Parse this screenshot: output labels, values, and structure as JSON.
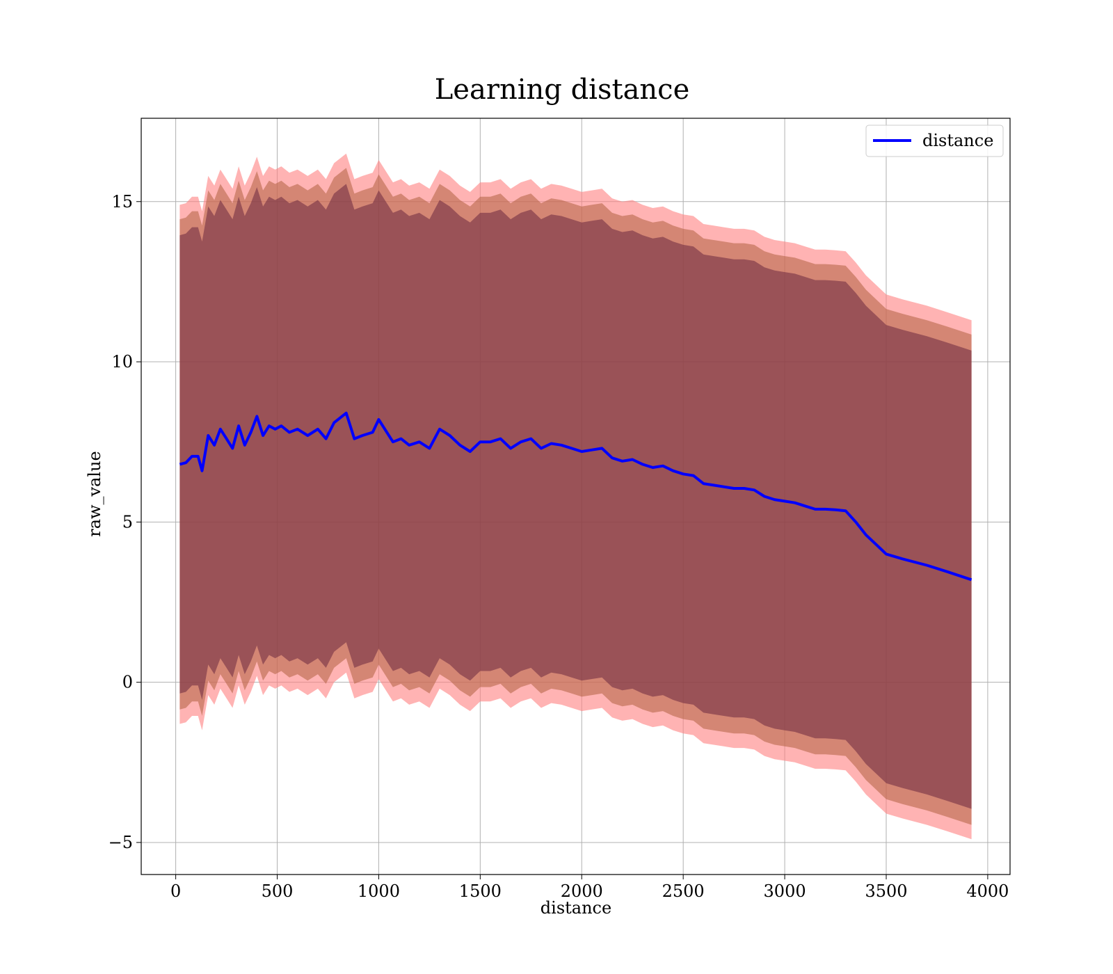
{
  "chart_data": {
    "type": "line",
    "title": "Learning distance",
    "xlabel": "distance",
    "ylabel": "raw_value",
    "xlim": [
      -170,
      4110
    ],
    "ylim": [
      -6.0,
      17.6
    ],
    "xticks": [
      0,
      500,
      1000,
      1500,
      2000,
      2500,
      3000,
      3500,
      4000
    ],
    "yticks": [
      -5,
      0,
      5,
      10,
      15
    ],
    "xtick_labels": [
      "0",
      "500",
      "1000",
      "1500",
      "2000",
      "2500",
      "3000",
      "3500",
      "4000"
    ],
    "ytick_labels": [
      "−5",
      "0",
      "5",
      "10",
      "15"
    ],
    "grid": true,
    "legend_position": "upper right",
    "series": [
      {
        "name": "distance",
        "color": "#0000ff",
        "x": [
          20,
          50,
          80,
          110,
          130,
          160,
          190,
          220,
          250,
          280,
          310,
          340,
          370,
          400,
          430,
          460,
          490,
          520,
          560,
          600,
          650,
          700,
          740,
          780,
          840,
          880,
          920,
          970,
          1000,
          1030,
          1070,
          1110,
          1150,
          1200,
          1250,
          1300,
          1350,
          1400,
          1450,
          1500,
          1550,
          1600,
          1650,
          1700,
          1750,
          1800,
          1850,
          1900,
          1950,
          2000,
          2050,
          2100,
          2150,
          2200,
          2250,
          2300,
          2350,
          2400,
          2450,
          2500,
          2550,
          2600,
          2650,
          2700,
          2750,
          2800,
          2850,
          2900,
          2950,
          3000,
          3050,
          3100,
          3150,
          3200,
          3250,
          3300,
          3350,
          3400,
          3450,
          3500,
          3580,
          3700,
          3800,
          3920
        ],
        "y": [
          6.8,
          6.85,
          7.05,
          7.05,
          6.6,
          7.7,
          7.4,
          7.9,
          7.6,
          7.3,
          8.0,
          7.4,
          7.8,
          8.3,
          7.7,
          8.0,
          7.9,
          8.0,
          7.8,
          7.9,
          7.7,
          7.9,
          7.6,
          8.1,
          8.4,
          7.6,
          7.7,
          7.8,
          8.2,
          7.9,
          7.5,
          7.6,
          7.4,
          7.5,
          7.3,
          7.9,
          7.7,
          7.4,
          7.2,
          7.5,
          7.5,
          7.6,
          7.3,
          7.5,
          7.6,
          7.3,
          7.45,
          7.4,
          7.3,
          7.2,
          7.25,
          7.3,
          7.0,
          6.9,
          6.95,
          6.8,
          6.7,
          6.75,
          6.6,
          6.5,
          6.45,
          6.2,
          6.15,
          6.1,
          6.05,
          6.05,
          6.0,
          5.8,
          5.7,
          5.65,
          5.6,
          5.5,
          5.4,
          5.4,
          5.38,
          5.35,
          5.0,
          4.6,
          4.3,
          4.0,
          3.85,
          3.65,
          3.45,
          3.2
        ]
      }
    ],
    "bands": [
      {
        "label_ref": "outer",
        "color": "#ff8080",
        "opacity": 0.6,
        "half_width": 8.1
      },
      {
        "label_ref": "middle",
        "color": "#b06040",
        "opacity": 0.55,
        "half_width": 7.65
      },
      {
        "label_ref": "inner",
        "color": "#6a2840",
        "opacity": 0.55,
        "half_width": 7.15
      }
    ]
  },
  "legend": {
    "entries": [
      {
        "label": "distance",
        "color": "#0000ff"
      }
    ]
  }
}
